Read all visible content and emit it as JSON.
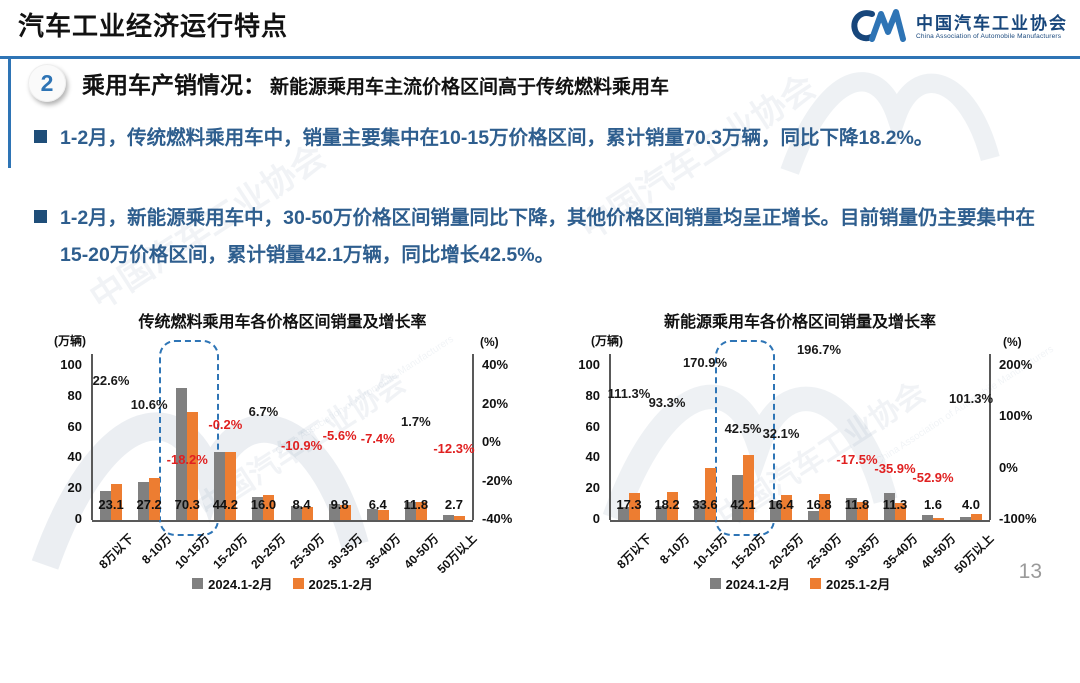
{
  "header": {
    "title": "汽车工业经济运行特点",
    "logo": {
      "org_cn": "中国汽车工业协会",
      "org_en": "China Association of Automobile Manufacturers"
    }
  },
  "section": {
    "number": "2",
    "title": "乘用车产销情况：",
    "subtitle": "新能源乘用车主流价格区间高于传统燃料乘用车"
  },
  "bullets": [
    {
      "text": "1-2月，传统燃料乘用车中，销量主要集中在10-15万价格区间，累计销量70.3万辆，同比下降18.2%。"
    },
    {
      "text": "1-2月，新能源乘用车中，30-50万价格区间销量同比下降，其他价格区间销量均呈正增长。目前销量仍主要集中在15-20万价格区间，累计销量42.1万辆，同比增长42.5%。"
    }
  ],
  "watermark": {
    "text_cn": "中国汽车工业协会",
    "text_en": "China Association of Automobile Manufacturers"
  },
  "colors": {
    "accent_blue": "#2E74B5",
    "bar_gray": "#808080",
    "bar_orange": "#ED7D31",
    "negative_red": "#E02020",
    "positive_black": "#1a1a1a",
    "bullet_navy": "#1F4E79",
    "bullet_text_blue": "#2E5E8E"
  },
  "page_number": "13",
  "chart_data": [
    {
      "type": "bar",
      "title": "传统燃料乘用车各价格区间销量及增长率",
      "left_axis_label": "(万辆)",
      "right_axis_label": "(%)",
      "left_axis_range": [
        0,
        100
      ],
      "left_ticks": [
        100,
        80,
        60,
        40,
        20,
        0
      ],
      "right_ticks": [
        "40%",
        "20%",
        "0%",
        "-20%",
        "-40%"
      ],
      "right_axis_range": [
        40,
        -40
      ],
      "categories": [
        "8万以下",
        "8-10万",
        "10-15万",
        "15-20万",
        "20-25万",
        "25-30万",
        "30-35万",
        "35-40万",
        "40-50万",
        "50万以上"
      ],
      "series": [
        {
          "name": "2024.1-2月",
          "color": "#808080",
          "values": [
            18.8,
            24.6,
            85.9,
            44.3,
            15.0,
            9.4,
            10.4,
            6.9,
            11.6,
            3.1
          ]
        },
        {
          "name": "2025.1-2月",
          "color": "#ED7D31",
          "values": [
            23.1,
            27.2,
            70.3,
            44.2,
            16.0,
            8.4,
            9.8,
            6.4,
            11.8,
            2.7
          ]
        }
      ],
      "value_labels": [
        "23.1",
        "27.2",
        "70.3",
        "44.2",
        "16.0",
        "8.4",
        "9.8",
        "6.4",
        "11.8",
        "2.7"
      ],
      "growth_labels": [
        "22.6%",
        "10.6%",
        "-18.2%",
        "-0.2%",
        "6.7%",
        "-10.9%",
        "-5.6%",
        "-7.4%",
        "1.7%",
        "-12.3%"
      ],
      "highlight_index": 2
    },
    {
      "type": "bar",
      "title": "新能源乘用车各价格区间销量及增长率",
      "left_axis_label": "(万辆)",
      "right_axis_label": "(%)",
      "left_axis_range": [
        0,
        100
      ],
      "left_ticks": [
        100,
        80,
        60,
        40,
        20,
        0
      ],
      "right_ticks": [
        "200%",
        "100%",
        "0%",
        "-100%"
      ],
      "right_axis_range": [
        200,
        -100
      ],
      "categories": [
        "8万以下",
        "8-10万",
        "10-15万",
        "15-20万",
        "20-25万",
        "25-30万",
        "30-35万",
        "35-40万",
        "40-50万",
        "50万以上"
      ],
      "series": [
        {
          "name": "2024.1-2月",
          "color": "#808080",
          "values": [
            8.2,
            9.4,
            12.4,
            29.5,
            12.4,
            5.7,
            14.3,
            17.6,
            3.4,
            2.0
          ]
        },
        {
          "name": "2025.1-2月",
          "color": "#ED7D31",
          "values": [
            17.3,
            18.2,
            33.6,
            42.1,
            16.4,
            16.8,
            11.8,
            11.3,
            1.6,
            4.0
          ]
        }
      ],
      "value_labels": [
        "17.3",
        "18.2",
        "33.6",
        "42.1",
        "16.4",
        "16.8",
        "11.8",
        "11.3",
        "1.6",
        "4.0"
      ],
      "growth_labels": [
        "111.3%",
        "93.3%",
        "170.9%",
        "42.5%",
        "32.1%",
        "196.7%",
        "-17.5%",
        "-35.9%",
        "-52.9%",
        "101.3%"
      ],
      "highlight_index": 3
    }
  ]
}
